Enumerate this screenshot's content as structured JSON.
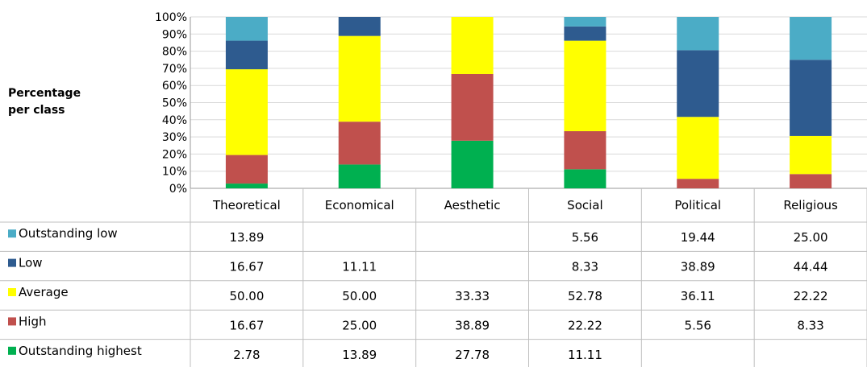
{
  "chart_data": {
    "type": "bar",
    "stacked": true,
    "percent": true,
    "ylabel": "Percentage per class",
    "ylim": [
      0,
      100
    ],
    "yticks": [
      "0%",
      "10%",
      "20%",
      "30%",
      "40%",
      "50%",
      "60%",
      "70%",
      "80%",
      "90%",
      "100%"
    ],
    "grid": true,
    "legend": "data-table-left",
    "categories": [
      "Theoretical",
      "Economical",
      "Aesthetic",
      "Social",
      "Political",
      "Religious"
    ],
    "series": [
      {
        "name": "Outstanding low",
        "color": "#4bacc6",
        "values": [
          13.89,
          null,
          null,
          5.56,
          19.44,
          25.0
        ],
        "labels": [
          "13.89",
          "",
          "",
          "5.56",
          "19.44",
          "25.00"
        ]
      },
      {
        "name": "Low",
        "color": "#2e5b8f",
        "values": [
          16.67,
          11.11,
          null,
          8.33,
          38.89,
          44.44
        ],
        "labels": [
          "16.67",
          "11.11",
          "",
          "8.33",
          "38.89",
          "44.44"
        ]
      },
      {
        "name": "Average",
        "color": "#ffff00",
        "values": [
          50.0,
          50.0,
          33.33,
          52.78,
          36.11,
          22.22
        ],
        "labels": [
          "50.00",
          "50.00",
          "33.33",
          "52.78",
          "36.11",
          "22.22"
        ]
      },
      {
        "name": "High",
        "color": "#c0504d",
        "values": [
          16.67,
          25.0,
          38.89,
          22.22,
          5.56,
          8.33
        ],
        "labels": [
          "16.67",
          "25.00",
          "38.89",
          "22.22",
          "5.56",
          "8.33"
        ]
      },
      {
        "name": "Outstanding highest",
        "color": "#00b050",
        "values": [
          2.78,
          13.89,
          27.78,
          11.11,
          null,
          null
        ],
        "labels": [
          "2.78",
          "13.89",
          "27.78",
          "11.11",
          "",
          ""
        ]
      }
    ]
  }
}
